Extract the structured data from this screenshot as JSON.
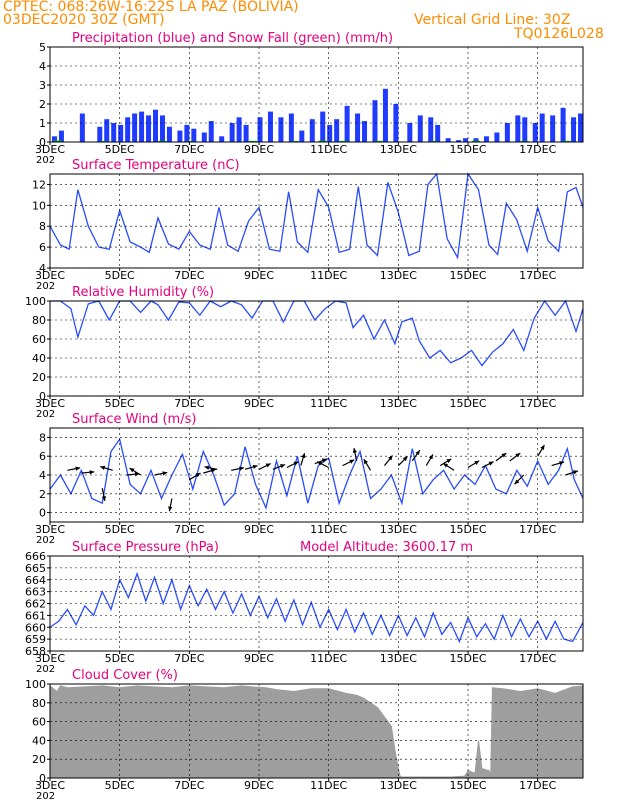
{
  "header": {
    "title_line1": "CPTEC:   068:26W-16:22S   LA PAZ (BOLIVIA)",
    "title_line2": "03DEC2020 30Z (GMT)",
    "grid_note": "Vertical Grid Line: 30Z",
    "model_code": "TQ0126L028"
  },
  "colors": {
    "header_text": "#ff8c00",
    "panel_title": "#e6007e",
    "precip": "#1f3bff",
    "snow": "#00b000",
    "line": "#2a4cff",
    "cloud": "#9e9e9e",
    "wind_arrow": "#000000"
  },
  "x_axis": {
    "tick_labels": [
      "3DEC",
      "5DEC",
      "7DEC",
      "9DEC",
      "11DEC",
      "13DEC",
      "15DEC",
      "17DEC"
    ],
    "tick_positions": [
      0,
      2,
      4,
      6,
      8,
      10,
      12,
      14
    ],
    "range": [
      0,
      15.3
    ],
    "partial_label": "202"
  },
  "chart_data": [
    {
      "id": "precip",
      "type": "bar",
      "title": "Precipitation (blue) and Snow Fall (green) (mm/h)",
      "ylim": [
        0,
        5
      ],
      "yticks": [
        0,
        1,
        2,
        3,
        4,
        5
      ],
      "series": [
        {
          "name": "Precipitation",
          "x": [
            0.1,
            0.3,
            0.9,
            1.4,
            1.6,
            1.8,
            2.0,
            2.2,
            2.4,
            2.6,
            2.8,
            3.0,
            3.2,
            3.4,
            3.7,
            3.9,
            4.1,
            4.4,
            4.6,
            4.9,
            5.2,
            5.4,
            5.6,
            6.0,
            6.3,
            6.6,
            6.9,
            7.2,
            7.5,
            7.8,
            8.0,
            8.2,
            8.5,
            8.8,
            9.0,
            9.3,
            9.6,
            9.9,
            10.3,
            10.6,
            10.9,
            11.1,
            11.4,
            11.7,
            11.9,
            12.2,
            12.5,
            12.8,
            13.1,
            13.4,
            13.6,
            13.9,
            14.1,
            14.4,
            14.7,
            15.0,
            15.2
          ],
          "values": [
            0.3,
            0.6,
            1.5,
            0.8,
            1.2,
            1.0,
            0.9,
            1.3,
            1.5,
            1.6,
            1.4,
            1.7,
            1.4,
            0.8,
            0.6,
            0.9,
            0.7,
            0.5,
            1.1,
            0.3,
            1.0,
            1.3,
            0.9,
            1.3,
            1.6,
            1.3,
            1.5,
            0.6,
            1.2,
            1.6,
            0.9,
            1.2,
            1.9,
            1.5,
            1.1,
            2.2,
            2.8,
            2.0,
            1.0,
            1.4,
            1.3,
            0.9,
            0.2,
            0.1,
            0.2,
            0.2,
            0.3,
            0.5,
            1.0,
            1.4,
            1.3,
            1.0,
            1.5,
            1.4,
            1.8,
            1.3,
            1.5
          ]
        },
        {
          "name": "Snow Fall",
          "x": [
            0.2,
            1.5,
            3.2,
            4.0,
            5.8,
            7.0,
            7.8,
            8.4,
            9.4,
            11.0,
            12.2,
            13.6,
            14.8
          ],
          "values": [
            0.08,
            0.05,
            0.06,
            0.05,
            0.06,
            0.05,
            0.07,
            0.06,
            0.06,
            0.05,
            0.06,
            0.05,
            0.06
          ]
        }
      ]
    },
    {
      "id": "temp",
      "type": "line",
      "title": "Surface Temperature (nC)",
      "ylim": [
        4,
        13
      ],
      "yticks": [
        4,
        6,
        8,
        10,
        12
      ],
      "x": [
        0,
        0.3,
        0.55,
        0.8,
        1.1,
        1.4,
        1.7,
        2.0,
        2.3,
        2.6,
        2.85,
        3.1,
        3.4,
        3.7,
        4.0,
        4.3,
        4.6,
        4.85,
        5.1,
        5.4,
        5.7,
        6.0,
        6.3,
        6.6,
        6.85,
        7.1,
        7.4,
        7.7,
        8.0,
        8.3,
        8.6,
        8.85,
        9.1,
        9.4,
        9.7,
        10.0,
        10.3,
        10.6,
        10.85,
        11.1,
        11.4,
        11.7,
        12.0,
        12.3,
        12.6,
        12.85,
        13.1,
        13.4,
        13.7,
        14.0,
        14.3,
        14.6,
        14.85,
        15.1,
        15.3
      ],
      "y": [
        8,
        6.2,
        5.8,
        11.5,
        8,
        6,
        5.8,
        9.5,
        6.5,
        6,
        5.5,
        8.8,
        6.3,
        5.8,
        7.5,
        6.2,
        5.8,
        9.8,
        6.2,
        5.6,
        8.5,
        9.8,
        5.8,
        5.6,
        11.3,
        6.5,
        5.5,
        11.5,
        9.8,
        5.5,
        5.8,
        11.8,
        6.2,
        5.2,
        12.2,
        9.3,
        5.2,
        5.6,
        12,
        13,
        6.8,
        5,
        13,
        11.5,
        6.2,
        5.3,
        10.2,
        8.6,
        5.6,
        9.8,
        6.6,
        5.6,
        11.3,
        11.7,
        9.8
      ]
    },
    {
      "id": "rh",
      "type": "line",
      "title": "Relative Humidity (%)",
      "ylim": [
        0,
        100
      ],
      "yticks": [
        0,
        20,
        40,
        60,
        80,
        100
      ],
      "x": [
        0,
        0.3,
        0.6,
        0.8,
        1.1,
        1.4,
        1.7,
        2.0,
        2.3,
        2.6,
        2.9,
        3.1,
        3.4,
        3.7,
        4.0,
        4.3,
        4.6,
        4.9,
        5.2,
        5.5,
        5.8,
        6.1,
        6.4,
        6.7,
        7.0,
        7.3,
        7.6,
        7.9,
        8.2,
        8.5,
        8.7,
        9.0,
        9.3,
        9.6,
        9.9,
        10.1,
        10.4,
        10.6,
        10.9,
        11.2,
        11.5,
        11.8,
        12.1,
        12.4,
        12.7,
        13.0,
        13.3,
        13.6,
        13.9,
        14.2,
        14.5,
        14.8,
        15.1,
        15.3
      ],
      "y": [
        100,
        100,
        92,
        62,
        97,
        100,
        80,
        100,
        100,
        88,
        100,
        96,
        80,
        99,
        98,
        85,
        100,
        94,
        100,
        96,
        82,
        100,
        100,
        78,
        100,
        100,
        80,
        92,
        100,
        98,
        72,
        85,
        60,
        80,
        55,
        78,
        82,
        58,
        40,
        48,
        35,
        40,
        48,
        32,
        46,
        55,
        70,
        48,
        82,
        100,
        85,
        100,
        68,
        92
      ]
    },
    {
      "id": "wind",
      "type": "line",
      "title": "Surface Wind (m/s)",
      "ylim": [
        -1,
        9
      ],
      "yticks": [
        0,
        2,
        4,
        6,
        8
      ],
      "x": [
        0,
        0.3,
        0.6,
        0.9,
        1.2,
        1.5,
        1.75,
        2.0,
        2.3,
        2.6,
        2.9,
        3.2,
        3.5,
        3.8,
        4.1,
        4.4,
        4.7,
        5.0,
        5.3,
        5.6,
        5.9,
        6.2,
        6.5,
        6.8,
        7.1,
        7.4,
        7.7,
        8.0,
        8.3,
        8.6,
        8.9,
        9.2,
        9.5,
        9.8,
        10.1,
        10.4,
        10.7,
        11.0,
        11.3,
        11.6,
        11.9,
        12.2,
        12.5,
        12.8,
        13.1,
        13.4,
        13.7,
        14.0,
        14.3,
        14.6,
        14.85,
        15.05,
        15.3
      ],
      "y": [
        2.5,
        4,
        2,
        4.5,
        1.5,
        1,
        6.5,
        7.8,
        3,
        2,
        4.5,
        1.5,
        4,
        6.2,
        2.5,
        6.5,
        4,
        0.8,
        2,
        7,
        3,
        0.5,
        5.5,
        1.8,
        6,
        1,
        5,
        5.8,
        1,
        4,
        6.5,
        1.5,
        2.5,
        4,
        1,
        6.8,
        2,
        3.5,
        4.5,
        2.5,
        4,
        3,
        5,
        2.5,
        2,
        4.5,
        2.8,
        5.5,
        3,
        4.5,
        6.8,
        3.5,
        1.5
      ],
      "arrows": {
        "x": [
          0.5,
          0.9,
          1.5,
          1.8,
          2.2,
          2.6,
          3.0,
          3.5,
          4.0,
          4.4,
          4.8,
          5.2,
          5.6,
          6.0,
          6.4,
          6.8,
          7.2,
          7.6,
          8.0,
          8.4,
          8.8,
          9.2,
          9.6,
          10.0,
          10.4,
          10.8,
          11.2,
          11.6,
          12.0,
          12.4,
          12.8,
          13.2,
          13.6,
          14.0,
          14.4,
          14.8
        ],
        "u": [
          1,
          1,
          0.2,
          -1,
          1,
          -0.8,
          1,
          -0.2,
          1,
          1,
          -1,
          1,
          1,
          1,
          1,
          1,
          0.3,
          1,
          -0.6,
          1,
          -0.2,
          -0.3,
          0.8,
          0.8,
          0.7,
          0.6,
          1,
          -0.8,
          1,
          1,
          0.8,
          0.8,
          -0.4,
          0.3,
          1,
          0.9
        ],
        "v": [
          0.2,
          0.1,
          -1,
          0.3,
          0.1,
          0.5,
          0.2,
          -1,
          0.6,
          0.3,
          0.2,
          0.2,
          0.3,
          0.5,
          0.4,
          0.5,
          1,
          0.4,
          0.3,
          0.5,
          1,
          0.5,
          1,
          0.8,
          1,
          1,
          0.6,
          0.5,
          0.6,
          0.5,
          0.6,
          0.6,
          -0.4,
          0.5,
          0.3,
          0.3
        ],
        "speed": [
          4.5,
          4.2,
          2.6,
          4.5,
          4,
          4,
          4,
          1.5,
          3.5,
          4.2,
          4.6,
          4.5,
          4.6,
          4.6,
          4.6,
          4.8,
          5,
          5.2,
          4.8,
          5,
          5.5,
          4.5,
          5,
          5,
          5.5,
          5,
          5,
          4.5,
          4.8,
          4.8,
          5.5,
          5.5,
          4,
          6,
          5,
          4
        ]
      }
    },
    {
      "id": "pres",
      "type": "line",
      "title": "Surface Pressure (hPa)",
      "annotation": "Model Altitude: 3600.17 m",
      "ylim": [
        658,
        666
      ],
      "yticks": [
        658,
        659,
        660,
        661,
        662,
        663,
        664,
        665,
        666
      ],
      "x": [
        0,
        0.25,
        0.5,
        0.75,
        1.0,
        1.25,
        1.5,
        1.75,
        2.0,
        2.25,
        2.5,
        2.75,
        3.0,
        3.25,
        3.5,
        3.75,
        4.0,
        4.25,
        4.5,
        4.75,
        5.0,
        5.25,
        5.5,
        5.75,
        6.0,
        6.25,
        6.5,
        6.75,
        7.0,
        7.25,
        7.5,
        7.75,
        8.0,
        8.25,
        8.5,
        8.75,
        9.0,
        9.25,
        9.5,
        9.75,
        10.0,
        10.25,
        10.5,
        10.75,
        11.0,
        11.25,
        11.5,
        11.75,
        12.0,
        12.25,
        12.5,
        12.75,
        13.0,
        13.25,
        13.5,
        13.75,
        14.0,
        14.25,
        14.5,
        14.75,
        15.0,
        15.3
      ],
      "y": [
        660,
        660.5,
        661.5,
        660.2,
        661.8,
        661,
        663,
        661.5,
        664,
        662.5,
        664.5,
        662.2,
        664.2,
        662,
        664,
        661.5,
        663.5,
        661.8,
        663.2,
        661.5,
        663,
        661.2,
        662.8,
        661,
        662.6,
        660.8,
        662.4,
        660.5,
        662.3,
        660.2,
        662.1,
        660,
        661.5,
        659.8,
        661.5,
        659.6,
        661.2,
        659.4,
        661,
        659.3,
        661,
        659.3,
        660.8,
        659.2,
        661.2,
        659.4,
        660.4,
        658.8,
        660.8,
        659.2,
        660.3,
        659,
        661,
        659.2,
        660.7,
        659.2,
        660.5,
        659,
        660.5,
        659,
        658.8,
        660.4
      ]
    },
    {
      "id": "cloud",
      "type": "area",
      "title": "Cloud Cover (%)",
      "ylim": [
        0,
        100
      ],
      "yticks": [
        0,
        20,
        40,
        60,
        80,
        100
      ],
      "x": [
        0,
        0.2,
        0.3,
        0.5,
        1.0,
        1.5,
        2.0,
        2.5,
        3.0,
        3.5,
        4.0,
        4.5,
        5.0,
        5.5,
        5.8,
        6.2,
        6.5,
        7.0,
        7.5,
        8.0,
        8.5,
        8.8,
        9.0,
        9.2,
        9.4,
        9.6,
        9.8,
        9.9,
        10.0,
        10.05,
        10.1,
        10.5,
        11.0,
        11.5,
        11.9,
        12.0,
        12.2,
        12.3,
        12.4,
        12.6,
        12.65,
        12.7,
        13.0,
        13.5,
        14.0,
        14.5,
        15.0,
        15.3
      ],
      "y": [
        98,
        92,
        98,
        96,
        97,
        98,
        96,
        98,
        97,
        96,
        98,
        97,
        96,
        98,
        97,
        96,
        94,
        92,
        95,
        95,
        90,
        88,
        85,
        80,
        75,
        65,
        55,
        30,
        10,
        2,
        1,
        1,
        1,
        1,
        2,
        8,
        5,
        40,
        10,
        8,
        2,
        96,
        95,
        92,
        95,
        90,
        97,
        98
      ]
    }
  ]
}
